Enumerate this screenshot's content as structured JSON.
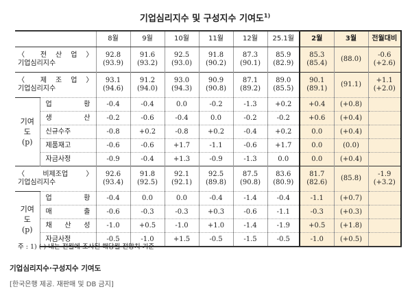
{
  "title": "기업심리지수 및 구성지수 기여도",
  "title_note": "1)",
  "table": {
    "header": [
      "8월",
      "9월",
      "10월",
      "11월",
      "12월",
      "25.1월",
      "2월",
      "3월",
      "전월대비"
    ],
    "sections": [
      {
        "label": [
          "〈 전 산 업 〉",
          "기업심리지수"
        ],
        "cells": [
          [
            "92.8",
            "(93.9)"
          ],
          [
            "91.6",
            "(93.2)"
          ],
          [
            "92.5",
            "(93.0)"
          ],
          [
            "91.8",
            "(90.2)"
          ],
          [
            "87.3",
            "(90.1)"
          ],
          [
            "85.9",
            "(82.9)"
          ],
          [
            "85.3",
            "(85.4)"
          ],
          [
            "(88.0)"
          ],
          [
            "-0.6",
            "(+2.6)"
          ]
        ]
      },
      {
        "label": [
          "〈 제 조 업 〉",
          "기업심리지수"
        ],
        "cells": [
          [
            "93.1",
            "(94.6)"
          ],
          [
            "91.2",
            "(94.0)"
          ],
          [
            "93.0",
            "(94.3)"
          ],
          [
            "90.9",
            "(90.8)"
          ],
          [
            "87.1",
            "(89.2)"
          ],
          [
            "89.0",
            "(85.5)"
          ],
          [
            "90.1",
            "(89.1)"
          ],
          [
            "(91.1)"
          ],
          [
            "+1.1",
            "(+2.0)"
          ]
        ],
        "group": "기여도(p)",
        "subrows": [
          {
            "label": "업 황",
            "cells": [
              "-0.4",
              "-0.4",
              "0.0",
              "-0.2",
              "-1.3",
              "+0.2",
              "+0.4",
              "(+0.8)"
            ]
          },
          {
            "label": "생 산",
            "cells": [
              "-0.2",
              "-0.6",
              "-0.4",
              "0.0",
              "-0.2",
              "-0.2",
              "+0.6",
              "(+0.4)"
            ]
          },
          {
            "label": "신규수주",
            "cells": [
              "-0.8",
              "+0.2",
              "-0.8",
              "+0.2",
              "-0.4",
              "+0.2",
              "0.0",
              "(+0.4)"
            ]
          },
          {
            "label": "제품재고",
            "cells": [
              "-0.6",
              "-0.6",
              "+1.7",
              "-1.1",
              "-0.6",
              "+1.7",
              "0.0",
              "(0.0)"
            ]
          },
          {
            "label": "자금사정",
            "cells": [
              "-0.9",
              "-0.4",
              "+1.3",
              "-0.9",
              "-1.3",
              "0.0",
              "0.0",
              "(+0.4)"
            ]
          }
        ]
      },
      {
        "label": [
          "〈비제조업〉",
          "기업심리지수"
        ],
        "cells": [
          [
            "92.6",
            "(93.4)"
          ],
          [
            "91.8",
            "(92.5)"
          ],
          [
            "92.1",
            "(92.1)"
          ],
          [
            "92.5",
            "(89.8)"
          ],
          [
            "87.5",
            "(90.8)"
          ],
          [
            "83.6",
            "(80.9)"
          ],
          [
            "81.7",
            "(82.6)"
          ],
          [
            "(85.8)"
          ],
          [
            "-1.9",
            "(+3.2)"
          ]
        ],
        "group": "기여도(p)",
        "subrows": [
          {
            "label": "업 황",
            "cells": [
              "-0.4",
              "0.0",
              "0.0",
              "-0.4",
              "-1.4",
              "-0.4",
              "-1.1",
              "(+0.7)"
            ]
          },
          {
            "label": "매 출",
            "cells": [
              "-0.6",
              "-0.3",
              "-0.3",
              "+0.3",
              "-0.6",
              "-1.1",
              "-0.3",
              "(+0.3)"
            ]
          },
          {
            "label": "채 산 성",
            "cells": [
              "-1.0",
              "+0.5",
              "-1.0",
              "+1.0",
              "-1.4",
              "-1.9",
              "+0.5",
              "(+1.8)"
            ]
          },
          {
            "label": "자금사정",
            "cells": [
              "-0.5",
              "-1.0",
              "+1.5",
              "-0.5",
              "-1.5",
              "-0.5",
              "-1.0",
              "(+0.5)"
            ]
          }
        ]
      }
    ]
  },
  "note": "주 : 1) (   ) 내는 전월에 조사된 해당월 전망치 기준",
  "caption": "기업심리지수·구성지수 기여도",
  "source": "[한국은행 제공. 재판매 및 DB 금지]"
}
